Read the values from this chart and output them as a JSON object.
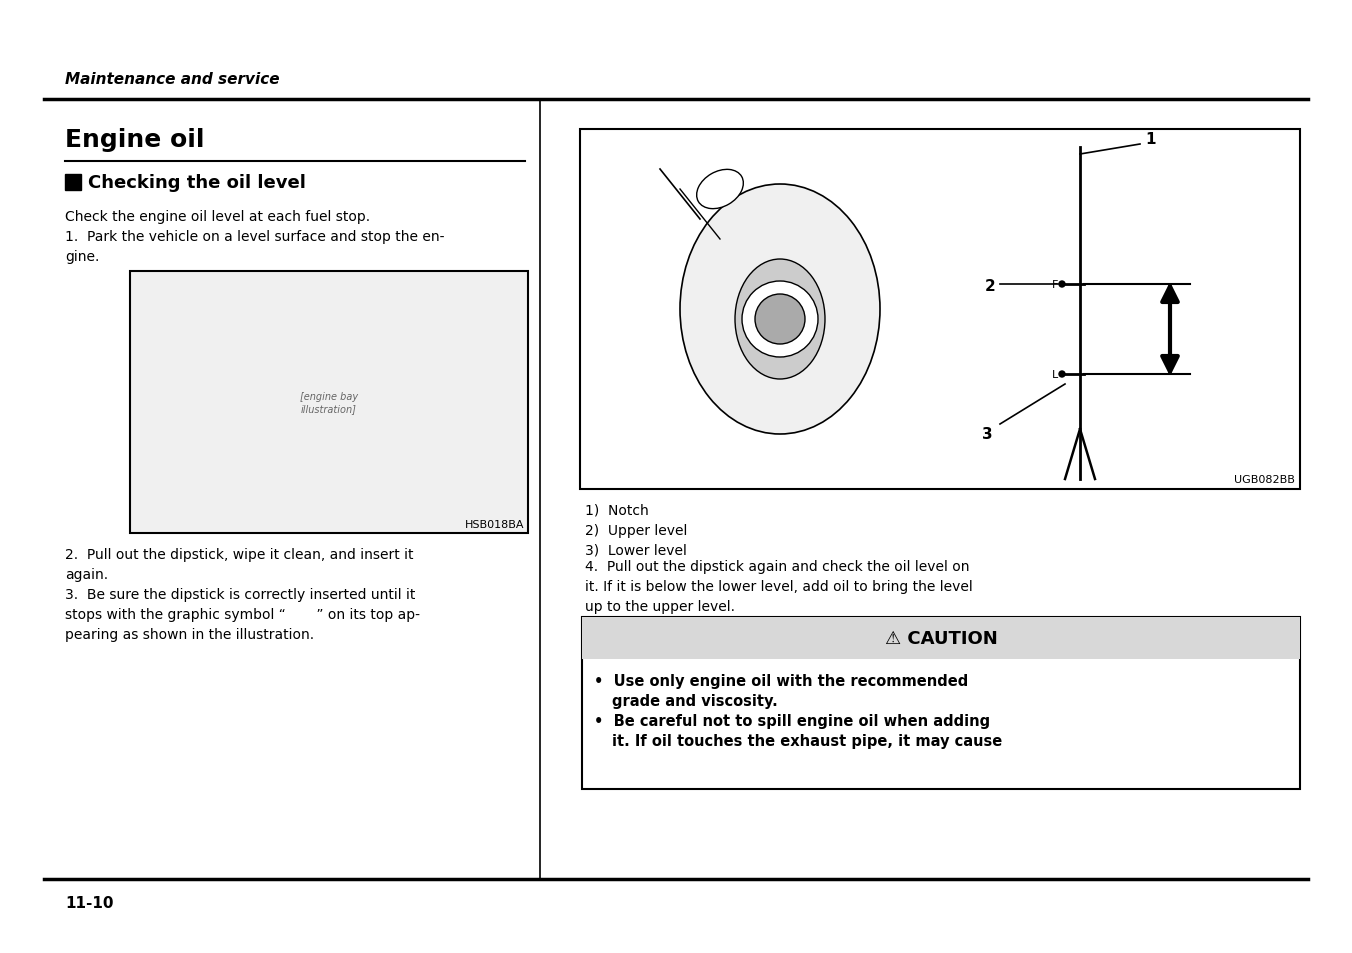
{
  "bg_color": "#ffffff",
  "header_italic": "Maintenance and service",
  "section_title": "Engine oil",
  "subsection_title": "Checking the oil level",
  "image_label_hsb": "HSB018BA",
  "image_label_ugb": "UGB082BB",
  "body_text_left": [
    "Check the engine oil level at each fuel stop.",
    "1.  Park the vehicle on a level surface and stop the en-",
    "gine."
  ],
  "body_text_left2": [
    "2.  Pull out the dipstick, wipe it clean, and insert it",
    "again.",
    "3.  Be sure the dipstick is correctly inserted until it",
    "stops with the graphic symbol “       ” on its top ap-",
    "pearing as shown in the illustration."
  ],
  "caption_right": [
    "1)  Notch",
    "2)  Upper level",
    "3)  Lower level"
  ],
  "step4_lines": [
    "4.  Pull out the dipstick again and check the oil level on",
    "it. If it is below the lower level, add oil to bring the level",
    "up to the upper level."
  ],
  "caution_header": "⚠ CAUTION",
  "caution_bullets": [
    "•  Use only engine oil with the recommended",
    "grade and viscosity.",
    "•  Be careful not to spill engine oil when adding",
    "it. If oil touches the exhaust pipe, it may cause"
  ],
  "page_number": "11-10"
}
